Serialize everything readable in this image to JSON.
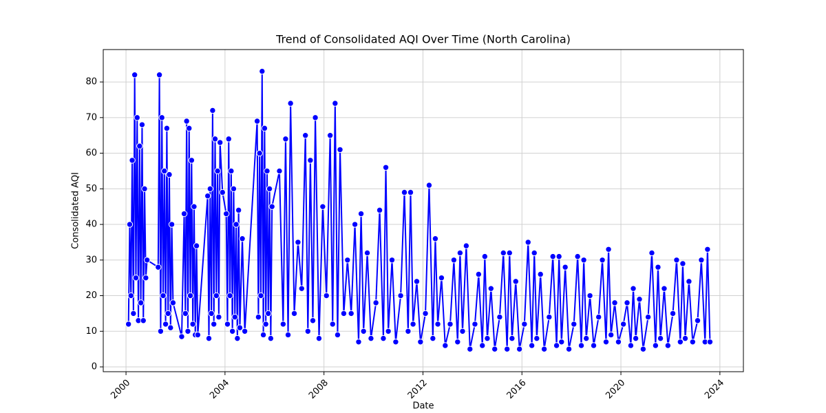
{
  "chart_data": {
    "type": "line",
    "title": "Trend of Consolidated AQI Over Time (North Carolina)",
    "xlabel": "Date",
    "ylabel": "Consolidated AQI",
    "color": "#0000ff",
    "grid": true,
    "xlim": [
      1999.08,
      2024.95
    ],
    "xticks": [
      2000,
      2004,
      2008,
      2012,
      2016,
      2020,
      2024
    ],
    "ylim": [
      -1.35,
      89.1
    ],
    "yticks": [
      0,
      10,
      20,
      30,
      40,
      50,
      60,
      70,
      80
    ],
    "x": [
      2000.1,
      2000.15,
      2000.2,
      2000.25,
      2000.3,
      2000.35,
      2000.4,
      2000.45,
      2000.5,
      2000.55,
      2000.6,
      2000.65,
      2000.7,
      2000.75,
      2000.8,
      2000.85,
      2001.3,
      2001.35,
      2001.4,
      2001.45,
      2001.5,
      2001.55,
      2001.6,
      2001.65,
      2001.7,
      2001.75,
      2001.8,
      2001.85,
      2001.9,
      2002.25,
      2002.35,
      2002.4,
      2002.45,
      2002.5,
      2002.55,
      2002.6,
      2002.65,
      2002.7,
      2002.75,
      2002.8,
      2002.85,
      2002.9,
      2003.3,
      2003.35,
      2003.4,
      2003.45,
      2003.5,
      2003.55,
      2003.6,
      2003.65,
      2003.7,
      2003.75,
      2003.8,
      2003.9,
      2004.05,
      2004.1,
      2004.15,
      2004.2,
      2004.25,
      2004.3,
      2004.35,
      2004.4,
      2004.45,
      2004.5,
      2004.55,
      2004.6,
      2004.7,
      2004.8,
      2005.3,
      2005.35,
      2005.4,
      2005.45,
      2005.5,
      2005.55,
      2005.6,
      2005.65,
      2005.7,
      2005.75,
      2005.8,
      2005.85,
      2005.9,
      2006.2,
      2006.35,
      2006.45,
      2006.55,
      2006.65,
      2006.8,
      2006.95,
      2007.1,
      2007.25,
      2007.35,
      2007.45,
      2007.55,
      2007.65,
      2007.8,
      2007.95,
      2008.1,
      2008.25,
      2008.35,
      2008.45,
      2008.55,
      2008.65,
      2008.8,
      2008.95,
      2009.1,
      2009.25,
      2009.4,
      2009.5,
      2009.6,
      2009.75,
      2009.9,
      2010.1,
      2010.25,
      2010.4,
      2010.5,
      2010.6,
      2010.75,
      2010.9,
      2011.1,
      2011.25,
      2011.4,
      2011.5,
      2011.6,
      2011.75,
      2011.9,
      2012.1,
      2012.25,
      2012.4,
      2012.5,
      2012.6,
      2012.75,
      2012.9,
      2013.1,
      2013.25,
      2013.4,
      2013.5,
      2013.6,
      2013.75,
      2013.9,
      2014.1,
      2014.25,
      2014.4,
      2014.5,
      2014.6,
      2014.75,
      2014.9,
      2015.1,
      2015.25,
      2015.4,
      2015.5,
      2015.6,
      2015.75,
      2015.9,
      2016.1,
      2016.25,
      2016.4,
      2016.5,
      2016.6,
      2016.75,
      2016.9,
      2017.1,
      2017.25,
      2017.4,
      2017.5,
      2017.6,
      2017.75,
      2017.9,
      2018.1,
      2018.25,
      2018.4,
      2018.5,
      2018.6,
      2018.75,
      2018.9,
      2019.1,
      2019.25,
      2019.4,
      2019.5,
      2019.6,
      2019.75,
      2019.9,
      2020.1,
      2020.25,
      2020.4,
      2020.5,
      2020.6,
      2020.75,
      2020.9,
      2021.1,
      2021.25,
      2021.4,
      2021.5,
      2021.6,
      2021.75,
      2021.9,
      2022.1,
      2022.25,
      2022.4,
      2022.5,
      2022.6,
      2022.75,
      2022.9,
      2023.1,
      2023.25,
      2023.4,
      2023.5,
      2023.6
    ],
    "values": [
      12,
      40,
      20,
      58,
      15,
      82,
      25,
      70,
      13,
      62,
      18,
      68,
      13,
      50,
      25,
      30,
      28,
      82,
      10,
      70,
      20,
      55,
      12,
      67,
      15,
      54,
      11,
      40,
      18,
      8.5,
      43,
      15,
      69,
      10,
      67,
      20,
      58,
      12,
      45,
      9,
      34,
      9,
      48,
      8,
      50,
      15,
      72,
      12,
      64,
      20,
      55,
      14,
      63,
      49,
      43,
      12,
      64,
      20,
      55,
      10,
      50,
      14,
      40,
      8,
      44,
      11,
      36,
      10,
      69,
      14,
      60,
      20,
      83,
      9,
      67,
      12,
      55,
      15,
      50,
      8,
      45,
      55,
      12,
      64,
      9,
      74,
      15,
      35,
      22,
      65,
      10,
      58,
      13,
      70,
      8,
      45,
      20,
      65,
      12,
      74,
      9,
      61,
      15,
      30,
      15,
      40,
      7,
      43,
      10,
      32,
      8,
      18,
      44,
      8,
      56,
      10,
      30,
      7,
      20,
      49,
      10,
      49,
      12,
      24,
      7,
      15,
      51,
      8,
      36,
      12,
      25,
      6,
      12,
      30,
      7,
      32,
      10,
      34,
      5,
      12,
      26,
      6,
      31,
      8,
      22,
      5,
      14,
      32,
      5,
      32,
      8,
      24,
      5,
      12,
      35,
      6,
      32,
      8,
      26,
      5,
      14,
      31,
      6,
      31,
      7,
      28,
      5,
      12,
      31,
      6,
      30,
      8,
      20,
      6,
      14,
      30,
      7,
      33,
      9,
      18,
      7,
      12,
      18,
      6,
      22,
      8,
      19,
      5,
      14,
      32,
      6,
      28,
      8,
      22,
      6,
      15,
      30,
      7,
      29,
      8,
      24,
      7,
      13,
      30,
      7,
      33,
      7
    ]
  }
}
